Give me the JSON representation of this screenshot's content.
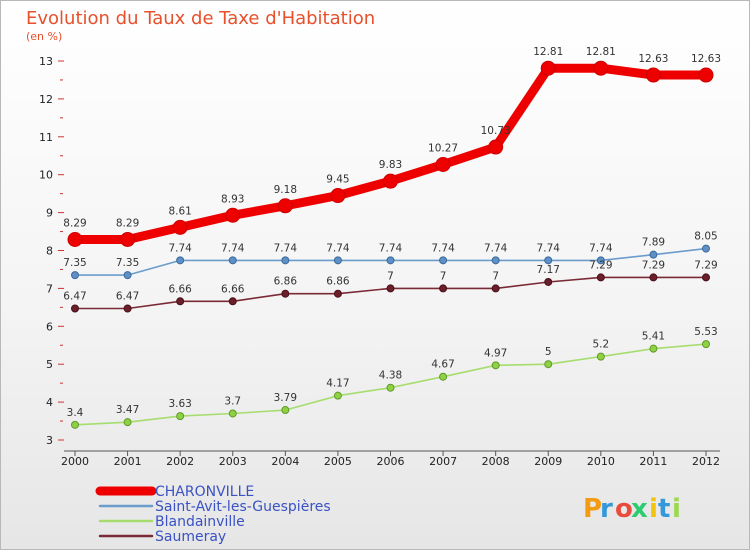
{
  "chart_data": {
    "type": "line",
    "title": "Evolution du Taux de Taxe d'Habitation",
    "subtitle": "(en %)",
    "x": [
      "2000",
      "2001",
      "2002",
      "2003",
      "2004",
      "2005",
      "2006",
      "2007",
      "2008",
      "2009",
      "2010",
      "2011",
      "2012"
    ],
    "ylim": [
      3,
      13
    ],
    "yticks": [
      3,
      4,
      5,
      6,
      7,
      8,
      9,
      10,
      11,
      12,
      13
    ],
    "grid": false,
    "legend_position": "bottom-left",
    "series": [
      {
        "name": "CHARONVILLE",
        "color": "#ee0000",
        "values": [
          8.29,
          8.29,
          8.61,
          8.93,
          9.18,
          9.45,
          9.83,
          10.27,
          10.73,
          12.81,
          12.81,
          12.63,
          12.63
        ],
        "labels": [
          "8.29",
          "8.29",
          "8.61",
          "8.93",
          "9.18",
          "9.45",
          "9.83",
          "10.27",
          "10.73",
          "12.81",
          "12.81",
          "12.63",
          "12.63"
        ]
      },
      {
        "name": "Saint-Avit-les-Guespières",
        "color": "#6a9ccc",
        "values": [
          7.35,
          7.35,
          7.74,
          7.74,
          7.74,
          7.74,
          7.74,
          7.74,
          7.74,
          7.74,
          7.74,
          7.89,
          8.05
        ],
        "labels": [
          "7.35",
          "7.35",
          "7.74",
          "7.74",
          "7.74",
          "7.74",
          "7.74",
          "7.74",
          "7.74",
          "7.74",
          "7.74",
          "7.89",
          "8.05"
        ]
      },
      {
        "name": "Blandainville",
        "color": "#a6dd6e",
        "values": [
          3.4,
          3.47,
          3.63,
          3.7,
          3.79,
          4.17,
          4.38,
          4.67,
          4.97,
          5,
          5.2,
          5.41,
          5.53
        ],
        "labels": [
          "3.4",
          "3.47",
          "3.63",
          "3.7",
          "3.79",
          "4.17",
          "4.38",
          "4.67",
          "4.97",
          "5",
          "5.2",
          "5.41",
          "5.53"
        ]
      },
      {
        "name": "Saumeray",
        "color": "#7a2a35",
        "values": [
          6.47,
          6.47,
          6.66,
          6.66,
          6.86,
          6.86,
          7,
          7,
          7,
          7.17,
          7.29,
          7.29,
          7.29
        ],
        "labels": [
          "6.47",
          "6.47",
          "6.66",
          "6.66",
          "6.86",
          "6.86",
          "7",
          "7",
          "7",
          "7.17",
          "7.29",
          "7.29",
          "7.29"
        ]
      }
    ]
  },
  "logo": {
    "text": "Proxiti",
    "letters": [
      "P",
      "r",
      "o",
      "x",
      "i",
      "t",
      "i"
    ],
    "colors": [
      "#f39c12",
      "#3498db",
      "#e74c3c",
      "#2ecc71",
      "#f1c40f",
      "#3498db",
      "#9bd94e"
    ]
  }
}
